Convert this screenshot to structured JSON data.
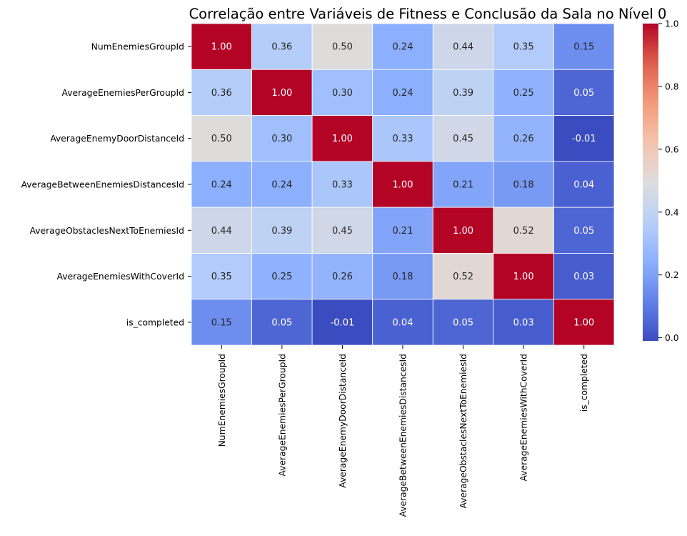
{
  "chart_data": {
    "type": "heatmap",
    "title": "Correlação entre Variáveis de Fitness e Conclusão da Sala no Nível 0",
    "xlabel": "",
    "ylabel": "",
    "row_labels": [
      "NumEnemiesGroupId",
      "AverageEnemiesPerGroupId",
      "AverageEnemyDoorDistanceId",
      "AverageBetweenEnemiesDistancesId",
      "AverageObstaclesNextToEnemiesId",
      "AverageEnemiesWithCoverId",
      "is_completed"
    ],
    "col_labels": [
      "NumEnemiesGroupId",
      "AverageEnemiesPerGroupId",
      "AverageEnemyDoorDistanceId",
      "AverageBetweenEnemiesDistancesId",
      "AverageObstaclesNextToEnemiesId",
      "AverageEnemiesWithCoverId",
      "is_completed"
    ],
    "values": [
      [
        1.0,
        0.36,
        0.5,
        0.24,
        0.44,
        0.35,
        0.15
      ],
      [
        0.36,
        1.0,
        0.3,
        0.24,
        0.39,
        0.25,
        0.05
      ],
      [
        0.5,
        0.3,
        1.0,
        0.33,
        0.45,
        0.26,
        -0.01
      ],
      [
        0.24,
        0.24,
        0.33,
        1.0,
        0.21,
        0.18,
        0.04
      ],
      [
        0.44,
        0.39,
        0.45,
        0.21,
        1.0,
        0.52,
        0.05
      ],
      [
        0.35,
        0.25,
        0.26,
        0.18,
        0.52,
        1.0,
        0.03
      ],
      [
        0.15,
        0.05,
        -0.01,
        0.04,
        0.05,
        0.03,
        1.0
      ]
    ],
    "colormap": "coolwarm",
    "color_range": [
      -0.01,
      1.0
    ],
    "colorbar_ticks": [
      0.0,
      0.2,
      0.4,
      0.6,
      0.8,
      1.0
    ],
    "colorbar_tick_labels": [
      "0.0",
      "0.2",
      "0.4",
      "0.6",
      "0.8",
      "1.0"
    ],
    "annotation_format": "2 decimals",
    "grid": true,
    "legend": "colorbar-right"
  }
}
